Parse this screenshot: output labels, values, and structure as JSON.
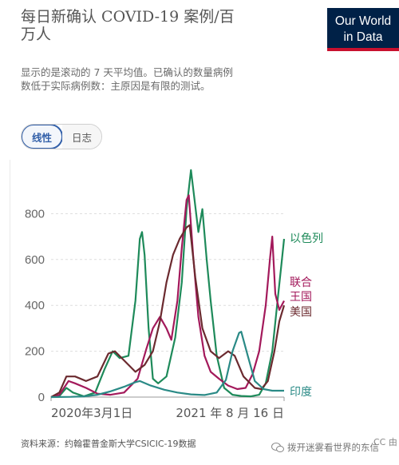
{
  "header": {
    "title": "每日新确认 COVID-19 案例/百万人",
    "subtitle": "显示的是滚动的 7 天平均值。已确认的数量病例数低于实际病例数：主原因是有限的测试。",
    "logo_line1": "Our World",
    "logo_line2": "in Data"
  },
  "toggle": {
    "linear_label": "线性",
    "log_label": "日志",
    "selected": "linear"
  },
  "source_text": "资料来源：约翰霍普金斯大学CSICIC-19数据",
  "watermark_text": "拨开迷雾看世界的东信",
  "cc_text": "CC 由",
  "colors": {
    "israel": "#1e8a5a",
    "uk": "#a3195b",
    "us": "#6b2a2f",
    "india": "#2a8a86",
    "logo_bg": "#002147",
    "logo_bar": "#c8102e",
    "accent": "#3360a9"
  },
  "chart_data": {
    "type": "line",
    "title": "每日新确认 COVID-19 案例/百万人",
    "x_tick_labels": [
      "2020年3月1日",
      "2021 年 8 月 16 日"
    ],
    "y_ticks": [
      0,
      200,
      400,
      600,
      800
    ],
    "ylim": [
      0,
      1000
    ],
    "x_domain": [
      "2020-03-01",
      "2021-08-16"
    ],
    "grid": "horizontal-dashed",
    "series": [
      {
        "name": "以色列",
        "color_key": "israel",
        "points": [
          [
            "2020-03-01",
            0
          ],
          [
            "2020-03-20",
            5
          ],
          [
            "2020-04-05",
            40
          ],
          [
            "2020-04-20",
            20
          ],
          [
            "2020-05-15",
            3
          ],
          [
            "2020-06-10",
            20
          ],
          [
            "2020-07-01",
            120
          ],
          [
            "2020-07-20",
            200
          ],
          [
            "2020-08-05",
            170
          ],
          [
            "2020-08-25",
            180
          ],
          [
            "2020-09-10",
            420
          ],
          [
            "2020-09-20",
            690
          ],
          [
            "2020-09-25",
            720
          ],
          [
            "2020-10-01",
            620
          ],
          [
            "2020-10-10",
            300
          ],
          [
            "2020-10-20",
            80
          ],
          [
            "2020-11-01",
            60
          ],
          [
            "2020-11-20",
            90
          ],
          [
            "2020-12-10",
            260
          ],
          [
            "2020-12-25",
            500
          ],
          [
            "2021-01-05",
            820
          ],
          [
            "2021-01-15",
            990
          ],
          [
            "2021-01-22",
            880
          ],
          [
            "2021-02-01",
            720
          ],
          [
            "2021-02-10",
            820
          ],
          [
            "2021-02-20",
            600
          ],
          [
            "2021-03-01",
            420
          ],
          [
            "2021-03-15",
            180
          ],
          [
            "2021-04-01",
            40
          ],
          [
            "2021-04-20",
            10
          ],
          [
            "2021-05-10",
            5
          ],
          [
            "2021-06-01",
            3
          ],
          [
            "2021-06-20",
            10
          ],
          [
            "2021-07-05",
            60
          ],
          [
            "2021-07-20",
            200
          ],
          [
            "2021-08-01",
            420
          ],
          [
            "2021-08-10",
            580
          ],
          [
            "2021-08-16",
            690
          ]
        ]
      },
      {
        "name": "联合王国",
        "color_key": "uk",
        "points": [
          [
            "2020-03-01",
            0
          ],
          [
            "2020-03-20",
            10
          ],
          [
            "2020-04-10",
            70
          ],
          [
            "2020-04-25",
            60
          ],
          [
            "2020-05-20",
            40
          ],
          [
            "2020-06-15",
            15
          ],
          [
            "2020-07-15",
            10
          ],
          [
            "2020-08-15",
            20
          ],
          [
            "2020-09-15",
            80
          ],
          [
            "2020-10-05",
            210
          ],
          [
            "2020-10-20",
            300
          ],
          [
            "2020-11-05",
            350
          ],
          [
            "2020-11-20",
            300
          ],
          [
            "2020-12-01",
            250
          ],
          [
            "2020-12-15",
            420
          ],
          [
            "2020-12-25",
            650
          ],
          [
            "2021-01-05",
            860
          ],
          [
            "2021-01-10",
            880
          ],
          [
            "2021-01-20",
            620
          ],
          [
            "2021-02-01",
            350
          ],
          [
            "2021-02-15",
            180
          ],
          [
            "2021-03-01",
            110
          ],
          [
            "2021-03-20",
            80
          ],
          [
            "2021-04-10",
            50
          ],
          [
            "2021-05-01",
            35
          ],
          [
            "2021-05-20",
            40
          ],
          [
            "2021-06-05",
            100
          ],
          [
            "2021-06-20",
            200
          ],
          [
            "2021-07-05",
            400
          ],
          [
            "2021-07-15",
            610
          ],
          [
            "2021-07-20",
            700
          ],
          [
            "2021-07-27",
            450
          ],
          [
            "2021-08-05",
            380
          ],
          [
            "2021-08-16",
            420
          ]
        ]
      },
      {
        "name": "美国",
        "color_key": "us",
        "points": [
          [
            "2020-03-01",
            0
          ],
          [
            "2020-03-20",
            20
          ],
          [
            "2020-04-05",
            90
          ],
          [
            "2020-04-25",
            90
          ],
          [
            "2020-05-20",
            70
          ],
          [
            "2020-06-15",
            90
          ],
          [
            "2020-07-10",
            190
          ],
          [
            "2020-07-25",
            200
          ],
          [
            "2020-08-15",
            160
          ],
          [
            "2020-09-10",
            110
          ],
          [
            "2020-10-01",
            140
          ],
          [
            "2020-10-20",
            200
          ],
          [
            "2020-11-05",
            330
          ],
          [
            "2020-11-20",
            500
          ],
          [
            "2020-12-05",
            620
          ],
          [
            "2020-12-20",
            690
          ],
          [
            "2021-01-05",
            740
          ],
          [
            "2021-01-12",
            750
          ],
          [
            "2021-01-25",
            520
          ],
          [
            "2021-02-10",
            300
          ],
          [
            "2021-03-01",
            200
          ],
          [
            "2021-03-20",
            170
          ],
          [
            "2021-04-10",
            200
          ],
          [
            "2021-04-25",
            180
          ],
          [
            "2021-05-15",
            90
          ],
          [
            "2021-06-10",
            40
          ],
          [
            "2021-06-25",
            35
          ],
          [
            "2021-07-10",
            70
          ],
          [
            "2021-07-25",
            200
          ],
          [
            "2021-08-05",
            330
          ],
          [
            "2021-08-16",
            400
          ]
        ]
      },
      {
        "name": "印度",
        "color_key": "india",
        "points": [
          [
            "2020-03-01",
            0
          ],
          [
            "2020-04-15",
            1
          ],
          [
            "2020-05-15",
            3
          ],
          [
            "2020-06-15",
            10
          ],
          [
            "2020-07-15",
            25
          ],
          [
            "2020-08-15",
            45
          ],
          [
            "2020-09-10",
            65
          ],
          [
            "2020-09-20",
            70
          ],
          [
            "2020-10-15",
            50
          ],
          [
            "2020-11-15",
            32
          ],
          [
            "2020-12-15",
            20
          ],
          [
            "2021-01-15",
            12
          ],
          [
            "2021-02-15",
            9
          ],
          [
            "2021-03-15",
            20
          ],
          [
            "2021-04-05",
            75
          ],
          [
            "2021-04-20",
            200
          ],
          [
            "2021-05-05",
            280
          ],
          [
            "2021-05-10",
            285
          ],
          [
            "2021-05-25",
            180
          ],
          [
            "2021-06-10",
            70
          ],
          [
            "2021-06-30",
            35
          ],
          [
            "2021-07-20",
            28
          ],
          [
            "2021-08-16",
            28
          ]
        ]
      }
    ]
  }
}
